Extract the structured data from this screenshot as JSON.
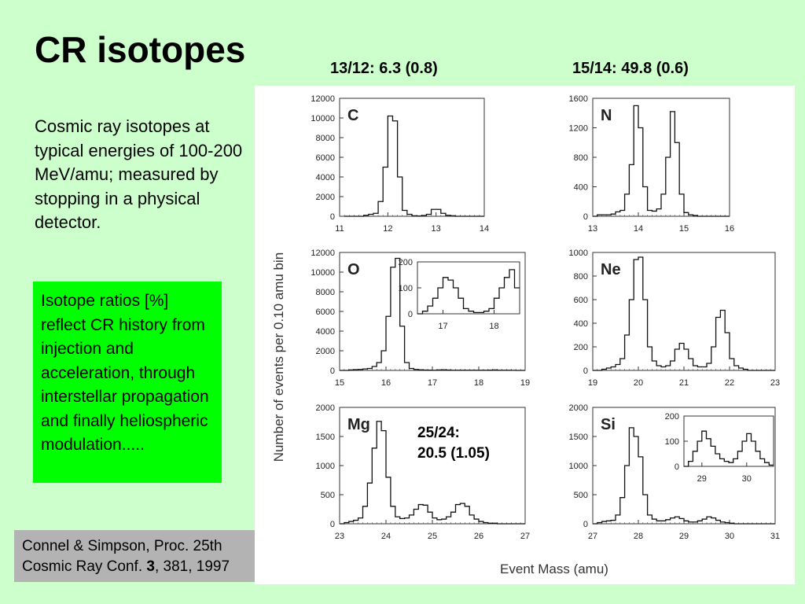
{
  "slide": {
    "title": "CR isotopes",
    "ratio_c": "13/12:  6.3 (0.8)",
    "ratio_n": "15/14:  49.8  (0.6)",
    "description": "Cosmic ray isotopes at typical energies of 100-200 MeV/amu; measured by stopping in a physical detector.",
    "green_box": "Isotope ratios  [%] reflect CR history from injection and acceleration, through interstellar propagation and finally heliospheric modulation.....",
    "citation_line1": "Connel & Simpson, Proc. 25th",
    "citation_line2_pre": "Cosmic Ray Conf. ",
    "citation_volume": "3",
    "citation_line2_post": ", 381, 1997",
    "mg_annotation_line1": "25/24:",
    "mg_annotation_line2": "20.5 (1.05)",
    "colors": {
      "background": "#ccffcc",
      "green_box": "#00ff00",
      "citation_box": "#b3b3b3"
    }
  },
  "chart_data": {
    "type": "histogram",
    "ylabel": "Number of events per 0.10 amu bin",
    "xlabel": "Event Mass (amu)",
    "panels": [
      {
        "label": "C",
        "xlim": [
          11,
          14
        ],
        "ylim": [
          0,
          12000
        ],
        "xticks": [
          11,
          12,
          13,
          14
        ],
        "yticks": [
          0,
          2000,
          4000,
          6000,
          8000,
          10000,
          12000
        ],
        "bin_start": 11.1,
        "bin_width": 0.1,
        "values": [
          0,
          0,
          0,
          0,
          100,
          200,
          300,
          1500,
          5000,
          10200,
          9700,
          4000,
          600,
          200,
          50,
          30,
          80,
          200,
          700,
          700,
          300,
          100,
          50,
          0,
          0,
          0,
          0,
          0,
          0
        ]
      },
      {
        "label": "N",
        "xlim": [
          13,
          16
        ],
        "ylim": [
          0,
          1600
        ],
        "xticks": [
          13,
          14,
          15,
          16
        ],
        "yticks": [
          0,
          400,
          800,
          1200,
          1600
        ],
        "bin_start": 13.0,
        "bin_width": 0.1,
        "values": [
          0,
          20,
          20,
          20,
          30,
          60,
          80,
          300,
          700,
          1500,
          1200,
          400,
          80,
          70,
          100,
          300,
          800,
          1420,
          1000,
          300,
          50,
          20,
          10,
          0,
          0,
          0,
          0,
          0,
          0,
          0
        ]
      },
      {
        "label": "O",
        "xlim": [
          15,
          19
        ],
        "ylim": [
          0,
          12000
        ],
        "xticks": [
          15,
          16,
          17,
          18,
          19
        ],
        "yticks": [
          0,
          2000,
          4000,
          6000,
          8000,
          10000,
          12000
        ],
        "bin_start": 15.0,
        "bin_width": 0.1,
        "values": [
          0,
          0,
          50,
          80,
          100,
          150,
          200,
          400,
          800,
          2000,
          5500,
          10500,
          11400,
          4500,
          800,
          200,
          100,
          60,
          40,
          30,
          20,
          50,
          60,
          40,
          20,
          20,
          20,
          20,
          20,
          20,
          20,
          20,
          30,
          50,
          20,
          20,
          20,
          10,
          0,
          0
        ],
        "inset": {
          "xlim": [
            16.5,
            18.5
          ],
          "ylim": [
            0,
            200
          ],
          "xticks": [
            17,
            18
          ],
          "yticks": [
            0,
            100,
            200
          ],
          "bin_start": 16.5,
          "bin_width": 0.1,
          "values": [
            0,
            10,
            30,
            60,
            100,
            140,
            130,
            100,
            60,
            20,
            10,
            5,
            5,
            10,
            20,
            60,
            100,
            140,
            170,
            100,
            20
          ]
        }
      },
      {
        "label": "Ne",
        "xlim": [
          19,
          23
        ],
        "ylim": [
          0,
          1000
        ],
        "xticks": [
          19,
          20,
          21,
          22,
          23
        ],
        "yticks": [
          0,
          200,
          400,
          600,
          800,
          1000
        ],
        "bin_start": 19.0,
        "bin_width": 0.1,
        "values": [
          0,
          0,
          10,
          20,
          30,
          50,
          100,
          300,
          600,
          940,
          960,
          600,
          200,
          80,
          40,
          30,
          40,
          80,
          180,
          230,
          180,
          100,
          40,
          30,
          30,
          60,
          200,
          450,
          510,
          320,
          100,
          40,
          20,
          10,
          0,
          0,
          0,
          0,
          0,
          0
        ]
      },
      {
        "label": "Mg",
        "xlim": [
          23,
          27
        ],
        "ylim": [
          0,
          2000
        ],
        "xticks": [
          23,
          24,
          25,
          26,
          27
        ],
        "yticks": [
          0,
          500,
          1000,
          1500,
          2000
        ],
        "bin_start": 23.0,
        "bin_width": 0.1,
        "values": [
          0,
          20,
          40,
          60,
          100,
          300,
          700,
          1300,
          1760,
          1600,
          800,
          300,
          120,
          90,
          100,
          150,
          250,
          330,
          320,
          200,
          100,
          70,
          80,
          120,
          200,
          330,
          350,
          300,
          150,
          80,
          40,
          20,
          10,
          10,
          0,
          0,
          0,
          0,
          0,
          0
        ]
      },
      {
        "label": "Si",
        "xlim": [
          27,
          31
        ],
        "ylim": [
          0,
          2000
        ],
        "xticks": [
          27,
          28,
          29,
          30,
          31
        ],
        "yticks": [
          0,
          500,
          1000,
          1500,
          2000
        ],
        "bin_start": 27.0,
        "bin_width": 0.1,
        "values": [
          0,
          20,
          40,
          50,
          60,
          150,
          450,
          1000,
          1650,
          1500,
          1150,
          500,
          150,
          80,
          50,
          50,
          70,
          100,
          120,
          90,
          50,
          30,
          30,
          50,
          80,
          120,
          100,
          60,
          30,
          20,
          10,
          0,
          0,
          0,
          0,
          0,
          0,
          0,
          0,
          0
        ],
        "inset": {
          "xlim": [
            28.6,
            30.6
          ],
          "ylim": [
            0,
            200
          ],
          "xticks": [
            29,
            30
          ],
          "yticks": [
            0,
            100,
            200
          ],
          "bin_start": 28.6,
          "bin_width": 0.1,
          "values": [
            0,
            20,
            60,
            100,
            140,
            110,
            80,
            50,
            30,
            20,
            15,
            30,
            60,
            100,
            130,
            100,
            60,
            30,
            15,
            5
          ]
        }
      }
    ]
  }
}
